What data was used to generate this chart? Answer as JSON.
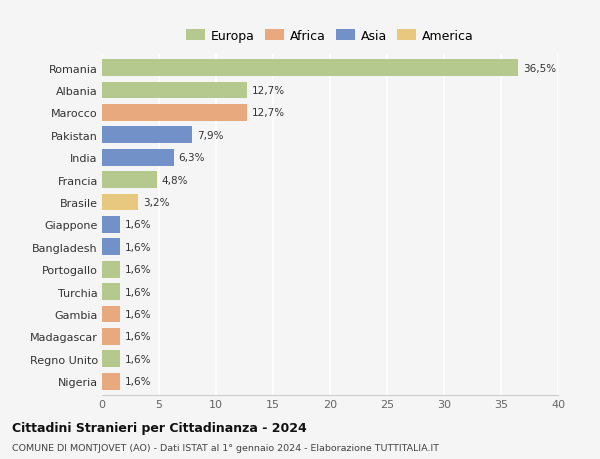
{
  "countries": [
    "Romania",
    "Albania",
    "Marocco",
    "Pakistan",
    "India",
    "Francia",
    "Brasile",
    "Giappone",
    "Bangladesh",
    "Portogallo",
    "Turchia",
    "Gambia",
    "Madagascar",
    "Regno Unito",
    "Nigeria"
  ],
  "values": [
    36.5,
    12.7,
    12.7,
    7.9,
    6.3,
    4.8,
    3.2,
    1.6,
    1.6,
    1.6,
    1.6,
    1.6,
    1.6,
    1.6,
    1.6
  ],
  "labels": [
    "36,5%",
    "12,7%",
    "12,7%",
    "7,9%",
    "6,3%",
    "4,8%",
    "3,2%",
    "1,6%",
    "1,6%",
    "1,6%",
    "1,6%",
    "1,6%",
    "1,6%",
    "1,6%",
    "1,6%"
  ],
  "colors": [
    "#b5c98e",
    "#b5c98e",
    "#e8a97e",
    "#7191c8",
    "#7191c8",
    "#b5c98e",
    "#e8c87e",
    "#7191c8",
    "#7191c8",
    "#b5c98e",
    "#b5c98e",
    "#e8a97e",
    "#e8a97e",
    "#b5c98e",
    "#e8a97e"
  ],
  "legend_labels": [
    "Europa",
    "Africa",
    "Asia",
    "America"
  ],
  "legend_colors": [
    "#b5c98e",
    "#e8a97e",
    "#7191c8",
    "#e8c87e"
  ],
  "xlim": [
    0,
    40
  ],
  "xticks": [
    0,
    5,
    10,
    15,
    20,
    25,
    30,
    35,
    40
  ],
  "title": "Cittadini Stranieri per Cittadinanza - 2024",
  "subtitle": "COMUNE DI MONTJOVET (AO) - Dati ISTAT al 1° gennaio 2024 - Elaborazione TUTTITALIA.IT",
  "background_color": "#f5f5f5",
  "grid_color": "#ffffff",
  "bar_height": 0.75
}
